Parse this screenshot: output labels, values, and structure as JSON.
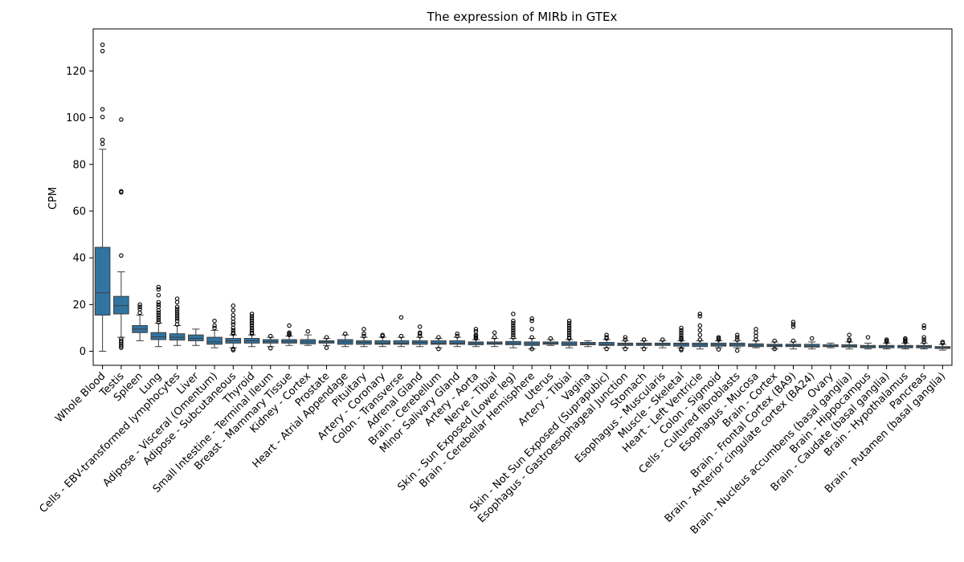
{
  "chart_data": {
    "type": "box",
    "title": "The expression of MIRb in GTEx",
    "xlabel": "",
    "ylabel": "CPM",
    "ylim": [
      -6,
      138
    ],
    "yticks": [
      0,
      20,
      40,
      60,
      80,
      100,
      120
    ],
    "grid": false,
    "legend": "none",
    "colors": {
      "box": "#3274a1",
      "line": "#3c3c3c",
      "outlier": "#000000"
    },
    "categories": [
      "Whole Blood",
      "Testis",
      "Spleen",
      "Lung",
      "Cells - EBV-transformed lymphocytes",
      "Liver",
      "Adipose - Visceral (Omentum)",
      "Adipose - Subcutaneous",
      "Thyroid",
      "Small Intestine - Terminal Ileum",
      "Breast - Mammary Tissue",
      "Kidney - Cortex",
      "Prostate",
      "Heart - Atrial Appendage",
      "Pituitary",
      "Artery - Coronary",
      "Colon - Transverse",
      "Adrenal Gland",
      "Brain - Cerebellum",
      "Minor Salivary Gland",
      "Artery - Aorta",
      "Nerve - Tibial",
      "Skin - Sun Exposed (Lower leg)",
      "Brain - Cerebellar Hemisphere",
      "Uterus",
      "Artery - Tibial",
      "Vagina",
      "Skin - Not Sun Exposed (Suprapubic)",
      "Esophagus - Gastroesophageal Junction",
      "Stomach",
      "Esophagus - Muscularis",
      "Muscle - Skeletal",
      "Heart - Left Ventricle",
      "Colon - Sigmoid",
      "Cells - Cultured fibroblasts",
      "Esophagus - Mucosa",
      "Brain - Cortex",
      "Brain - Frontal Cortex (BA9)",
      "Brain - Anterior cingulate cortex (BA24)",
      "Ovary",
      "Brain - Nucleus accumbens (basal ganglia)",
      "Brain - Hippocampus",
      "Brain - Caudate (basal ganglia)",
      "Brain - Hypothalamus",
      "Pancreas",
      "Brain - Putamen (basal ganglia)"
    ],
    "boxes": [
      {
        "whislo": 0,
        "q1": 15.5,
        "med": 25,
        "q3": 44.5,
        "whishi": 86.5,
        "fliers": [
          88.8,
          90.5,
          100.3,
          103.6,
          128.5,
          131.2
        ]
      },
      {
        "whislo": 6,
        "q1": 16,
        "med": 19.5,
        "q3": 23.5,
        "whishi": 34,
        "fliers": [
          1.5,
          2.2,
          3,
          3.8,
          4.5,
          5.3,
          41,
          68,
          68.5,
          99.2
        ]
      },
      {
        "whislo": 4.5,
        "q1": 8,
        "med": 9.5,
        "q3": 11,
        "whishi": 15.5,
        "fliers": [
          16.5,
          18,
          19,
          20
        ]
      },
      {
        "whislo": 2,
        "q1": 5,
        "med": 6.2,
        "q3": 8,
        "whishi": 12,
        "fliers": [
          12.5,
          13.5,
          14.5,
          15.5,
          16.5,
          17.5,
          19,
          20,
          21,
          24,
          26.5,
          27.5
        ]
      },
      {
        "whislo": 2.5,
        "q1": 4.8,
        "med": 6,
        "q3": 7.5,
        "whishi": 11,
        "fliers": [
          11.5,
          13,
          14,
          15,
          16,
          17,
          18,
          19,
          21,
          22.5
        ]
      },
      {
        "whislo": 2.5,
        "q1": 4.5,
        "med": 5.5,
        "q3": 7,
        "whishi": 9.5,
        "fliers": []
      },
      {
        "whislo": 1.5,
        "q1": 3,
        "med": 4,
        "q3": 6,
        "whishi": 9,
        "fliers": [
          10,
          11,
          13
        ]
      },
      {
        "whislo": 1.5,
        "q1": 3.5,
        "med": 4.5,
        "q3": 5.5,
        "whishi": 7,
        "fliers": [
          0.5,
          1,
          7.5,
          8,
          9,
          10,
          11.5,
          12.5,
          14,
          15.5,
          17.5,
          19.5
        ]
      },
      {
        "whislo": 2,
        "q1": 3.5,
        "med": 4.5,
        "q3": 5.5,
        "whishi": 7,
        "fliers": [
          7.5,
          8,
          9,
          10,
          11,
          12,
          13,
          14,
          15,
          16
        ]
      },
      {
        "whislo": 2,
        "q1": 3.5,
        "med": 4.2,
        "q3": 5,
        "whishi": 6,
        "fliers": [
          1.3,
          6.5
        ]
      },
      {
        "whislo": 2.5,
        "q1": 3.5,
        "med": 4.2,
        "q3": 5,
        "whishi": 6.5,
        "fliers": [
          7,
          7.5,
          8,
          11
        ]
      },
      {
        "whislo": 2.5,
        "q1": 3.2,
        "med": 4,
        "q3": 5,
        "whishi": 7,
        "fliers": [
          8.5
        ]
      },
      {
        "whislo": 2.5,
        "q1": 3.5,
        "med": 4,
        "q3": 4.5,
        "whishi": 5.5,
        "fliers": [
          1.5,
          6
        ]
      },
      {
        "whislo": 2,
        "q1": 3,
        "med": 4,
        "q3": 5,
        "whishi": 7,
        "fliers": [
          7.5
        ]
      },
      {
        "whislo": 2,
        "q1": 3,
        "med": 3.8,
        "q3": 4.5,
        "whishi": 6,
        "fliers": [
          6.5,
          7.5,
          9.5
        ]
      },
      {
        "whislo": 2,
        "q1": 3,
        "med": 3.5,
        "q3": 4.5,
        "whishi": 6,
        "fliers": [
          6.5,
          7
        ]
      },
      {
        "whislo": 2,
        "q1": 3,
        "med": 3.5,
        "q3": 4.5,
        "whishi": 6,
        "fliers": [
          6.5,
          14.5
        ]
      },
      {
        "whislo": 2,
        "q1": 3,
        "med": 3.8,
        "q3": 4.5,
        "whishi": 6,
        "fliers": [
          6.5,
          7.5,
          8,
          10.5
        ]
      },
      {
        "whislo": 1.5,
        "q1": 3,
        "med": 3.5,
        "q3": 4.5,
        "whishi": 5.5,
        "fliers": [
          1,
          6
        ]
      },
      {
        "whislo": 2,
        "q1": 3,
        "med": 3.5,
        "q3": 4.5,
        "whishi": 6,
        "fliers": [
          6.5,
          7.5
        ]
      },
      {
        "whislo": 2,
        "q1": 2.8,
        "med": 3.5,
        "q3": 4,
        "whishi": 5,
        "fliers": [
          5.5,
          6,
          6.5,
          7,
          8.5,
          9.5
        ]
      },
      {
        "whislo": 2,
        "q1": 3,
        "med": 3.5,
        "q3": 4,
        "whishi": 5.5,
        "fliers": [
          6,
          8
        ]
      },
      {
        "whislo": 1.5,
        "q1": 2.8,
        "med": 3.5,
        "q3": 4.2,
        "whishi": 5.5,
        "fliers": [
          6,
          7,
          8,
          9,
          10,
          11,
          12,
          13,
          16
        ]
      },
      {
        "whislo": 1,
        "q1": 2.5,
        "med": 3.2,
        "q3": 4,
        "whishi": 5.5,
        "fliers": [
          1,
          6,
          9.5,
          13,
          14
        ]
      },
      {
        "whislo": 2.5,
        "q1": 3,
        "med": 3.5,
        "q3": 4,
        "whishi": 5,
        "fliers": [
          5.5
        ]
      },
      {
        "whislo": 1.5,
        "q1": 2.5,
        "med": 3.2,
        "q3": 4,
        "whishi": 5,
        "fliers": [
          5.5,
          6,
          7,
          8,
          9,
          10,
          11,
          12,
          13
        ]
      },
      {
        "whislo": 2,
        "q1": 2.8,
        "med": 3.2,
        "q3": 3.8,
        "whishi": 4.5,
        "fliers": []
      },
      {
        "whislo": 1.5,
        "q1": 2.5,
        "med": 3,
        "q3": 3.8,
        "whishi": 5,
        "fliers": [
          1,
          5.5,
          6,
          7
        ]
      },
      {
        "whislo": 1.5,
        "q1": 2.5,
        "med": 3,
        "q3": 3.5,
        "whishi": 4.5,
        "fliers": [
          1,
          5,
          6
        ]
      },
      {
        "whislo": 1.5,
        "q1": 2.5,
        "med": 3,
        "q3": 3.5,
        "whishi": 4.5,
        "fliers": [
          1,
          5
        ]
      },
      {
        "whislo": 1.5,
        "q1": 2.5,
        "med": 3,
        "q3": 3.5,
        "whishi": 4.5,
        "fliers": [
          5
        ]
      },
      {
        "whislo": 1.5,
        "q1": 2.2,
        "med": 3,
        "q3": 3.5,
        "whishi": 4.5,
        "fliers": [
          0.5,
          1,
          5,
          5.5,
          6,
          7,
          8,
          9,
          10
        ]
      },
      {
        "whislo": 1,
        "q1": 2,
        "med": 2.8,
        "q3": 3.5,
        "whishi": 4.5,
        "fliers": [
          5,
          7,
          9,
          11,
          15,
          16
        ]
      },
      {
        "whislo": 1.5,
        "q1": 2.2,
        "med": 2.8,
        "q3": 3.5,
        "whishi": 4.5,
        "fliers": [
          0.8,
          5,
          5.5,
          6
        ]
      },
      {
        "whislo": 1.5,
        "q1": 2.2,
        "med": 2.8,
        "q3": 3.5,
        "whishi": 4.5,
        "fliers": [
          0.3,
          5,
          6,
          7
        ]
      },
      {
        "whislo": 1.5,
        "q1": 2,
        "med": 2.5,
        "q3": 3.2,
        "whishi": 4.5,
        "fliers": [
          5,
          6.5,
          8,
          9.5
        ]
      },
      {
        "whislo": 1,
        "q1": 2,
        "med": 2.5,
        "q3": 3,
        "whishi": 4,
        "fliers": [
          1,
          4.5
        ]
      },
      {
        "whislo": 1,
        "q1": 2,
        "med": 2.5,
        "q3": 3,
        "whishi": 4,
        "fliers": [
          4.5,
          10.5,
          11.5,
          12.5
        ]
      },
      {
        "whislo": 1,
        "q1": 1.8,
        "med": 2.2,
        "q3": 3,
        "whishi": 4,
        "fliers": [
          5.5
        ]
      },
      {
        "whislo": 1.5,
        "q1": 2,
        "med": 2.2,
        "q3": 2.8,
        "whishi": 3.5,
        "fliers": []
      },
      {
        "whislo": 1,
        "q1": 1.8,
        "med": 2.2,
        "q3": 2.8,
        "whishi": 4,
        "fliers": [
          4.5,
          5,
          7
        ]
      },
      {
        "whislo": 1,
        "q1": 1.5,
        "med": 2,
        "q3": 2.5,
        "whishi": 3.5,
        "fliers": [
          6
        ]
      },
      {
        "whislo": 1,
        "q1": 1.5,
        "med": 2,
        "q3": 2.5,
        "whishi": 3.5,
        "fliers": [
          4,
          4.5,
          5
        ]
      },
      {
        "whislo": 1,
        "q1": 1.5,
        "med": 2,
        "q3": 2.5,
        "whishi": 3.5,
        "fliers": [
          4,
          4.5,
          5,
          5.5
        ]
      },
      {
        "whislo": 1,
        "q1": 1.5,
        "med": 2,
        "q3": 2.5,
        "whishi": 3.5,
        "fliers": [
          4,
          5,
          6,
          10,
          11
        ]
      },
      {
        "whislo": 0.5,
        "q1": 1.2,
        "med": 1.5,
        "q3": 2,
        "whishi": 3,
        "fliers": [
          3.5,
          4
        ]
      }
    ]
  }
}
